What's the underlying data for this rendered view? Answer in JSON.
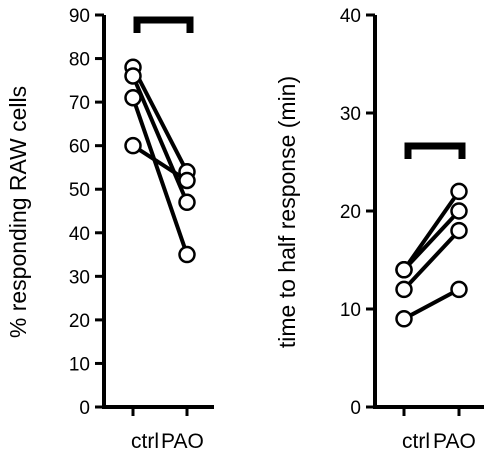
{
  "chart_data": [
    {
      "type": "line",
      "ylabel": "% responding RAW cells",
      "ylim": [
        0,
        90
      ],
      "yticks": [
        0,
        10,
        20,
        30,
        40,
        50,
        60,
        70,
        80,
        90
      ],
      "categories": [
        "ctrl",
        "PAO"
      ],
      "series": [
        {
          "values": [
            78,
            54
          ]
        },
        {
          "values": [
            76,
            47
          ]
        },
        {
          "values": [
            71,
            35
          ]
        },
        {
          "values": [
            60,
            52
          ]
        }
      ],
      "significance_bracket": true
    },
    {
      "type": "line",
      "ylabel": "time to half response (min)",
      "ylim": [
        0,
        40
      ],
      "yticks": [
        0,
        10,
        20,
        30,
        40
      ],
      "categories": [
        "ctrl",
        "PAO"
      ],
      "series": [
        {
          "values": [
            14,
            22
          ]
        },
        {
          "values": [
            14,
            20
          ]
        },
        {
          "values": [
            12,
            18
          ]
        },
        {
          "values": [
            9,
            12
          ]
        }
      ],
      "significance_bracket": true
    }
  ]
}
